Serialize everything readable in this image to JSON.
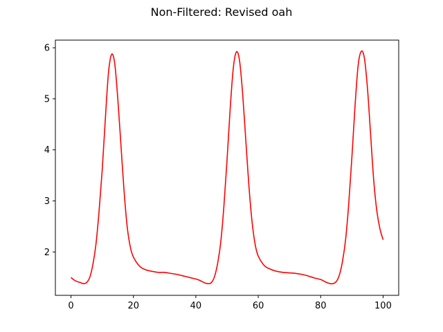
{
  "figure": {
    "title": "Non-Filtered: Revised oah"
  },
  "chart_data": {
    "type": "line",
    "title": "Non-Filtered: Revised oah",
    "xlabel": "",
    "ylabel": "",
    "xlim": [
      -5,
      105
    ],
    "ylim": [
      1.15,
      6.15
    ],
    "grid": false,
    "x_ticks": [
      0,
      20,
      40,
      60,
      80,
      100
    ],
    "x_tick_labels": [
      "0",
      "20",
      "40",
      "60",
      "80",
      "100"
    ],
    "y_ticks": [
      2,
      3,
      4,
      5,
      6
    ],
    "y_tick_labels": [
      "2",
      "3",
      "4",
      "5",
      "6"
    ],
    "series": [
      {
        "name": "oah",
        "color": "#ff0000",
        "x": [
          0,
          1,
          2,
          3,
          4,
          5,
          6,
          7,
          8,
          9,
          10,
          11,
          12,
          13,
          14,
          15,
          16,
          17,
          18,
          19,
          20,
          22,
          24,
          26,
          28,
          30,
          32,
          34,
          36,
          38,
          40,
          41,
          42,
          43,
          44,
          45,
          46,
          47,
          48,
          49,
          50,
          51,
          52,
          53,
          54,
          55,
          56,
          57,
          58,
          59,
          60,
          62,
          64,
          66,
          68,
          70,
          72,
          74,
          76,
          78,
          80,
          81,
          82,
          83,
          84,
          85,
          86,
          87,
          88,
          89,
          90,
          91,
          92,
          93,
          94,
          95,
          96,
          97,
          98,
          99,
          100
        ],
        "y": [
          1.5,
          1.45,
          1.42,
          1.4,
          1.38,
          1.4,
          1.5,
          1.75,
          2.15,
          2.8,
          3.6,
          4.6,
          5.5,
          5.87,
          5.7,
          5.0,
          4.1,
          3.2,
          2.5,
          2.1,
          1.9,
          1.72,
          1.65,
          1.62,
          1.6,
          1.6,
          1.58,
          1.56,
          1.53,
          1.5,
          1.47,
          1.45,
          1.42,
          1.39,
          1.38,
          1.4,
          1.52,
          1.78,
          2.2,
          2.9,
          3.8,
          4.8,
          5.6,
          5.92,
          5.75,
          5.1,
          4.2,
          3.3,
          2.6,
          2.15,
          1.92,
          1.73,
          1.66,
          1.62,
          1.6,
          1.59,
          1.58,
          1.56,
          1.53,
          1.49,
          1.46,
          1.43,
          1.4,
          1.38,
          1.38,
          1.42,
          1.55,
          1.82,
          2.25,
          2.95,
          3.85,
          4.85,
          5.65,
          5.93,
          5.8,
          5.2,
          4.3,
          3.4,
          2.8,
          2.45,
          2.24
        ]
      }
    ]
  }
}
